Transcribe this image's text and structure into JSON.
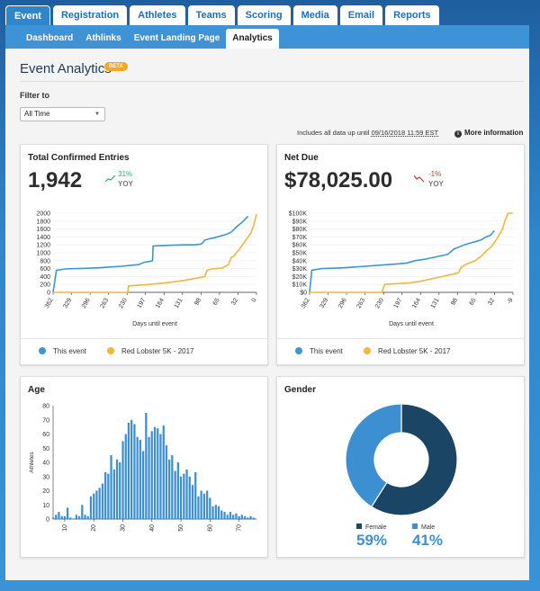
{
  "tabs": [
    {
      "label": "Event",
      "active": true
    },
    {
      "label": "Registration"
    },
    {
      "label": "Athletes"
    },
    {
      "label": "Teams"
    },
    {
      "label": "Scoring"
    },
    {
      "label": "Media"
    },
    {
      "label": "Email"
    },
    {
      "label": "Reports"
    }
  ],
  "subtabs": [
    {
      "label": "Dashboard"
    },
    {
      "label": "Athlinks"
    },
    {
      "label": "Event Landing Page"
    },
    {
      "label": "Analytics",
      "active": true
    }
  ],
  "page": {
    "title": "Event Analytics",
    "badge": "BETA",
    "filter_label": "Filter to",
    "filter_value": "All Time",
    "includes_text": "Includes all data up until",
    "includes_date": "09/16/2018 11:59 EST",
    "more_info": "More information"
  },
  "entries": {
    "title": "Total Confirmed Entries",
    "value": "1,942",
    "change": "31%",
    "yoy": "YOY",
    "xlabel": "Days until event"
  },
  "netdue": {
    "title": "Net Due",
    "value": "$78,025.00",
    "change": "-1%",
    "yoy": "YOY",
    "xlabel": "Days until event"
  },
  "legend": {
    "this_event": "This event",
    "other_event": "Red Lobster 5K - 2017"
  },
  "age": {
    "title": "Age",
    "ylabel": "Athletes"
  },
  "gender": {
    "title": "Gender",
    "female_label": "Female",
    "female_pct": "59%",
    "male_label": "Male",
    "male_pct": "41%"
  },
  "colors": {
    "blue": "#3c96d3",
    "orange": "#f2b53e",
    "navy": "#1a4564",
    "lightblue": "#3c8fd0",
    "green": "#2eb27a",
    "red": "#c0392b"
  },
  "chart_data": [
    {
      "type": "line",
      "title": "Total Confirmed Entries",
      "xlabel": "Days until event",
      "ylabel": "",
      "x_ticks": [
        "362",
        "329",
        "296",
        "263",
        "230",
        "197",
        "164",
        "131",
        "98",
        "65",
        "32",
        "0"
      ],
      "xlim": [
        362,
        0
      ],
      "ylim": [
        0,
        2000
      ],
      "y_ticks": [
        0,
        200,
        400,
        600,
        800,
        1000,
        1200,
        1400,
        1600,
        1800,
        2000
      ],
      "series": [
        {
          "name": "This event",
          "color": "#3c96d3",
          "x": [
            362,
            356,
            340,
            320,
            300,
            280,
            260,
            240,
            225,
            210,
            200,
            190,
            185,
            184,
            170,
            150,
            130,
            110,
            98,
            92,
            85,
            75,
            65,
            55,
            45,
            35,
            25,
            15
          ],
          "y": [
            0,
            560,
            590,
            600,
            610,
            620,
            640,
            660,
            680,
            700,
            760,
            780,
            800,
            1170,
            1180,
            1190,
            1200,
            1200,
            1220,
            1320,
            1350,
            1380,
            1420,
            1460,
            1520,
            1660,
            1780,
            1920
          ]
        },
        {
          "name": "Red Lobster 5K - 2017",
          "color": "#f2b53e",
          "x": [
            362,
            320,
            280,
            240,
            229,
            228,
            210,
            190,
            170,
            150,
            130,
            110,
            100,
            92,
            88,
            80,
            70,
            60,
            50,
            45,
            40,
            30,
            20,
            10,
            5,
            0
          ],
          "y": [
            0,
            0,
            0,
            0,
            0,
            160,
            180,
            200,
            230,
            260,
            300,
            350,
            380,
            400,
            560,
            590,
            600,
            620,
            700,
            880,
            920,
            1100,
            1300,
            1500,
            1700,
            1980
          ]
        }
      ]
    },
    {
      "type": "line",
      "title": "Net Due",
      "xlabel": "Days until event",
      "ylabel": "",
      "x_ticks": [
        "362",
        "329",
        "296",
        "263",
        "230",
        "197",
        "164",
        "131",
        "98",
        "65",
        "32",
        "-9"
      ],
      "xlim": [
        362,
        -9
      ],
      "ylim": [
        0,
        100000
      ],
      "y_ticks": [
        "$0",
        "$10K",
        "$20K",
        "$30K",
        "$40K",
        "$50K",
        "$60K",
        "$70K",
        "$80K",
        "$90K",
        "$100K"
      ],
      "series": [
        {
          "name": "This event",
          "color": "#3c96d3",
          "x": [
            362,
            358,
            340,
            320,
            300,
            280,
            260,
            240,
            220,
            200,
            185,
            170,
            150,
            130,
            110,
            98,
            90,
            80,
            70,
            60,
            50,
            40,
            32,
            25
          ],
          "y": [
            0,
            28000,
            30000,
            30500,
            31000,
            32000,
            33000,
            34000,
            35000,
            36000,
            37000,
            40000,
            42000,
            45000,
            48000,
            55000,
            57000,
            60000,
            62000,
            64000,
            66000,
            70000,
            72000,
            78000
          ]
        },
        {
          "name": "Red Lobster 5K - 2017",
          "color": "#f2b53e",
          "x": [
            362,
            320,
            280,
            240,
            230,
            225,
            200,
            180,
            160,
            140,
            120,
            100,
            90,
            85,
            75,
            60,
            50,
            40,
            30,
            20,
            10,
            5,
            0,
            -9
          ],
          "y": [
            0,
            0,
            0,
            0,
            0,
            10000,
            11000,
            12000,
            14000,
            17000,
            20000,
            23000,
            25000,
            32000,
            36000,
            40000,
            45000,
            52000,
            58000,
            68000,
            80000,
            92000,
            100000,
            100000
          ]
        }
      ]
    },
    {
      "type": "bar",
      "title": "Age",
      "xlabel": "",
      "ylabel": "Athletes",
      "xlim": [
        6,
        76
      ],
      "ylim": [
        0,
        80
      ],
      "x_ticks": [
        10,
        20,
        30,
        40,
        50,
        60,
        70
      ],
      "y_ticks": [
        0,
        10,
        20,
        30,
        40,
        50,
        60,
        70,
        80
      ],
      "categories": [
        6,
        7,
        8,
        9,
        10,
        11,
        12,
        13,
        14,
        15,
        16,
        17,
        18,
        19,
        20,
        21,
        22,
        23,
        24,
        25,
        26,
        27,
        28,
        29,
        30,
        31,
        32,
        33,
        34,
        35,
        36,
        37,
        38,
        39,
        40,
        41,
        42,
        43,
        44,
        45,
        46,
        47,
        48,
        49,
        50,
        51,
        52,
        53,
        54,
        55,
        56,
        57,
        58,
        59,
        60,
        61,
        62,
        63,
        64,
        65,
        66,
        67,
        68,
        69,
        70,
        71,
        72,
        73,
        74,
        75
      ],
      "values": [
        1,
        3,
        5,
        2,
        2,
        8,
        1,
        0,
        3,
        2,
        10,
        3,
        2,
        16,
        18,
        20,
        22,
        25,
        33,
        32,
        45,
        35,
        42,
        40,
        55,
        60,
        68,
        70,
        67,
        58,
        56,
        48,
        75,
        58,
        62,
        65,
        64,
        60,
        66,
        52,
        42,
        45,
        34,
        40,
        30,
        32,
        35,
        30,
        24,
        33,
        16,
        20,
        18,
        20,
        15,
        9,
        10,
        9,
        6,
        5,
        3,
        5,
        3,
        4,
        2,
        3,
        2,
        1,
        2,
        1
      ]
    },
    {
      "type": "pie",
      "title": "Gender",
      "categories": [
        "Female",
        "Male"
      ],
      "values": [
        59,
        41
      ]
    }
  ]
}
